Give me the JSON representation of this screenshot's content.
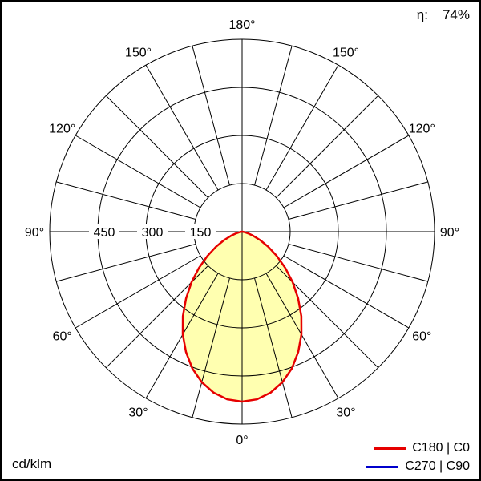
{
  "meta": {
    "efficiency_label": "η:",
    "efficiency_value": "74%",
    "unit": "cd/klm"
  },
  "legend": [
    {
      "label": "C180 | C0",
      "color": "#e60000"
    },
    {
      "label": "C270 | C90",
      "color": "#0000cc"
    }
  ],
  "chart_data": {
    "type": "line",
    "projection": "polar",
    "unit": "cd/klm",
    "efficiency_percent": 74,
    "grid": {
      "ring_values": [
        150,
        300,
        450,
        600
      ],
      "ring_label_values": [
        150,
        300,
        450
      ],
      "spoke_step_deg": 15,
      "angle_labels_deg": [
        0,
        30,
        60,
        90,
        120,
        150,
        180
      ]
    },
    "series": [
      {
        "name": "C180 | C0",
        "color": "#e60000",
        "fill": "#ffffb0",
        "gamma_deg": [
          0,
          5,
          10,
          15,
          20,
          25,
          30,
          35,
          40,
          45,
          50,
          55,
          60,
          65,
          70,
          75,
          80,
          85,
          90
        ],
        "values": [
          530,
          525,
          510,
          486,
          454,
          414,
          370,
          322,
          272,
          223,
          176,
          132,
          94,
          62,
          36,
          18,
          7,
          2,
          0
        ]
      },
      {
        "name": "C270 | C90",
        "color": "#0000cc"
      }
    ]
  }
}
